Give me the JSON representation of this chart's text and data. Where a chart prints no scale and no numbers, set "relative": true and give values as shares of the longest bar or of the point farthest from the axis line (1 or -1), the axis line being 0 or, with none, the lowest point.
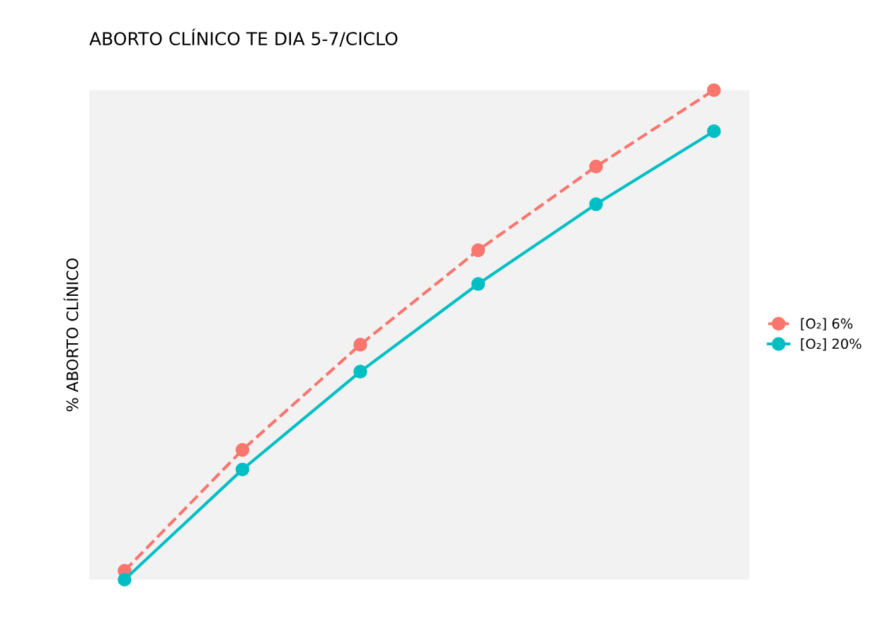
{
  "chart_data": {
    "type": "line",
    "title": "ABORTO CLÍNICO TE DIA 5-7/CICLO",
    "ylabel": "% ABORTO CLÍNICO",
    "relative": true,
    "categories": [
      null,
      null,
      null,
      null,
      null,
      null
    ],
    "series": [
      {
        "name": "[O₂] 6%",
        "color": "#f8766d",
        "line_style": "dashed",
        "values": [
          0.018,
          0.265,
          0.48,
          0.673,
          0.844,
          1
        ]
      },
      {
        "name": "[O₂] 20%",
        "color": "#00bfc4",
        "line_style": "solid",
        "values": [
          0,
          0.225,
          0.425,
          0.604,
          0.767,
          0.916
        ]
      }
    ],
    "marker": "circle",
    "legend": "right"
  }
}
